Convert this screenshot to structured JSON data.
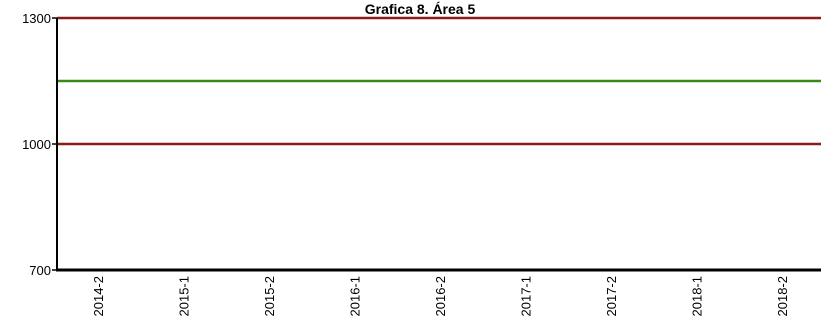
{
  "chart_data": {
    "type": "line",
    "title": "Grafica 8. Área 5",
    "xlabel": "",
    "ylabel": "",
    "categories": [
      "2014-2",
      "2015-1",
      "2015-2",
      "2016-1",
      "2016-2",
      "2017-1",
      "2017-2",
      "2018-1",
      "2018-2"
    ],
    "ylim": [
      700,
      1300
    ],
    "yticks": [
      700,
      1000,
      1300
    ],
    "grid": false,
    "legend": "none",
    "series": [
      {
        "color": "#8b1a1a",
        "values": [
          1300,
          1300,
          1300,
          1300,
          1300,
          1300,
          1300,
          1300,
          1300
        ]
      },
      {
        "color": "#3a8a1a",
        "values": [
          1150,
          1150,
          1150,
          1150,
          1150,
          1150,
          1150,
          1150,
          1150
        ]
      },
      {
        "color": "#8b1a1a",
        "values": [
          1000,
          1000,
          1000,
          1000,
          1000,
          1000,
          1000,
          1000,
          1000
        ]
      }
    ]
  }
}
